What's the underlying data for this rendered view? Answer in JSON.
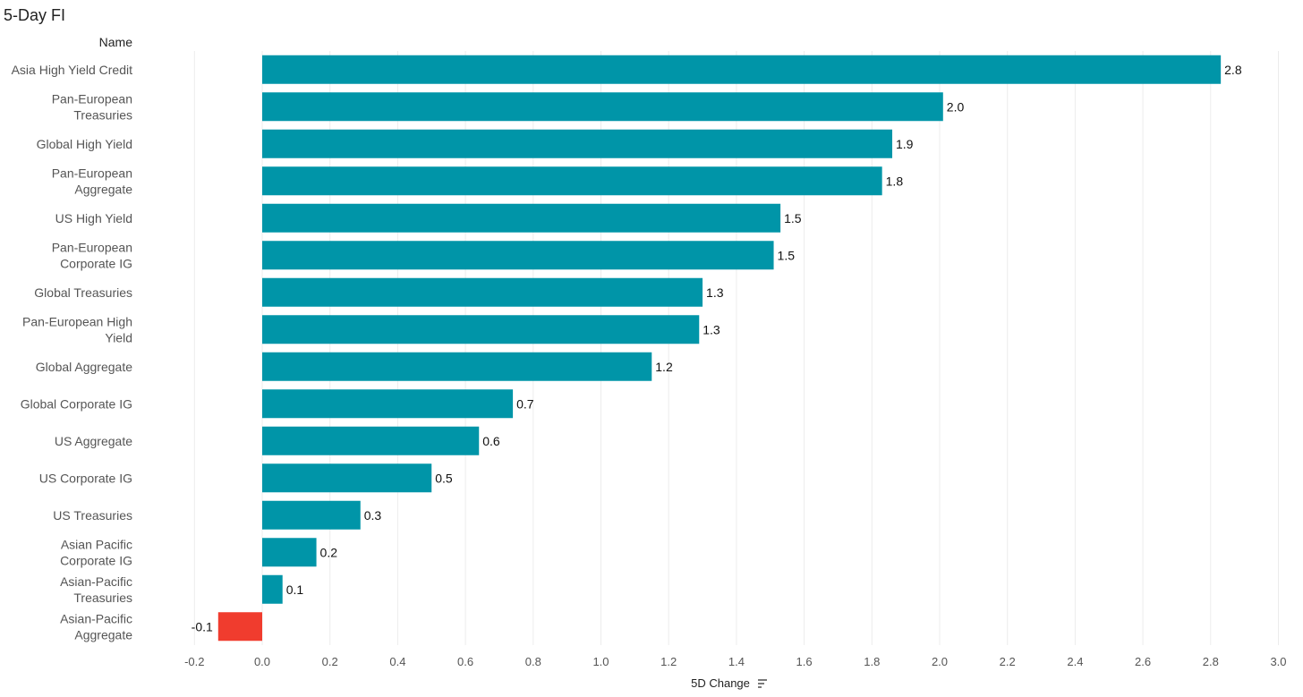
{
  "chart_data": {
    "type": "bar",
    "orientation": "horizontal",
    "title": "5-Day FI",
    "row_header": "Name",
    "xlabel": "5D Change",
    "xlim": [
      -0.3,
      3.0
    ],
    "xticks": [
      "-0.2",
      "0.0",
      "0.2",
      "0.4",
      "0.6",
      "0.8",
      "1.0",
      "1.2",
      "1.4",
      "1.6",
      "1.8",
      "2.0",
      "2.2",
      "2.4",
      "2.6",
      "2.8",
      "3.0"
    ],
    "grid": "vertical",
    "colors": {
      "positive": "#0095A8",
      "negative": "#F03C2E"
    },
    "categories": [
      [
        "Asia High Yield Credit"
      ],
      [
        "Pan-European",
        "Treasuries"
      ],
      [
        "Global High Yield"
      ],
      [
        "Pan-European",
        "Aggregate"
      ],
      [
        "US High Yield"
      ],
      [
        "Pan-European",
        "Corporate IG"
      ],
      [
        "Global Treasuries"
      ],
      [
        "Pan-European High",
        "Yield"
      ],
      [
        "Global Aggregate"
      ],
      [
        "Global Corporate IG"
      ],
      [
        "US Aggregate"
      ],
      [
        "US Corporate IG"
      ],
      [
        "US Treasuries"
      ],
      [
        "Asian Pacific",
        "Corporate IG"
      ],
      [
        "Asian-Pacific",
        "Treasuries"
      ],
      [
        "Asian-Pacific",
        "Aggregate"
      ]
    ],
    "values": [
      2.83,
      2.01,
      1.86,
      1.83,
      1.53,
      1.51,
      1.3,
      1.29,
      1.15,
      0.74,
      0.64,
      0.5,
      0.29,
      0.16,
      0.06,
      -0.13
    ],
    "value_labels": [
      "2.8",
      "2.0",
      "1.9",
      "1.8",
      "1.5",
      "1.5",
      "1.3",
      "1.3",
      "1.2",
      "0.7",
      "0.6",
      "0.5",
      "0.3",
      "0.2",
      "0.1",
      "-0.1"
    ]
  }
}
